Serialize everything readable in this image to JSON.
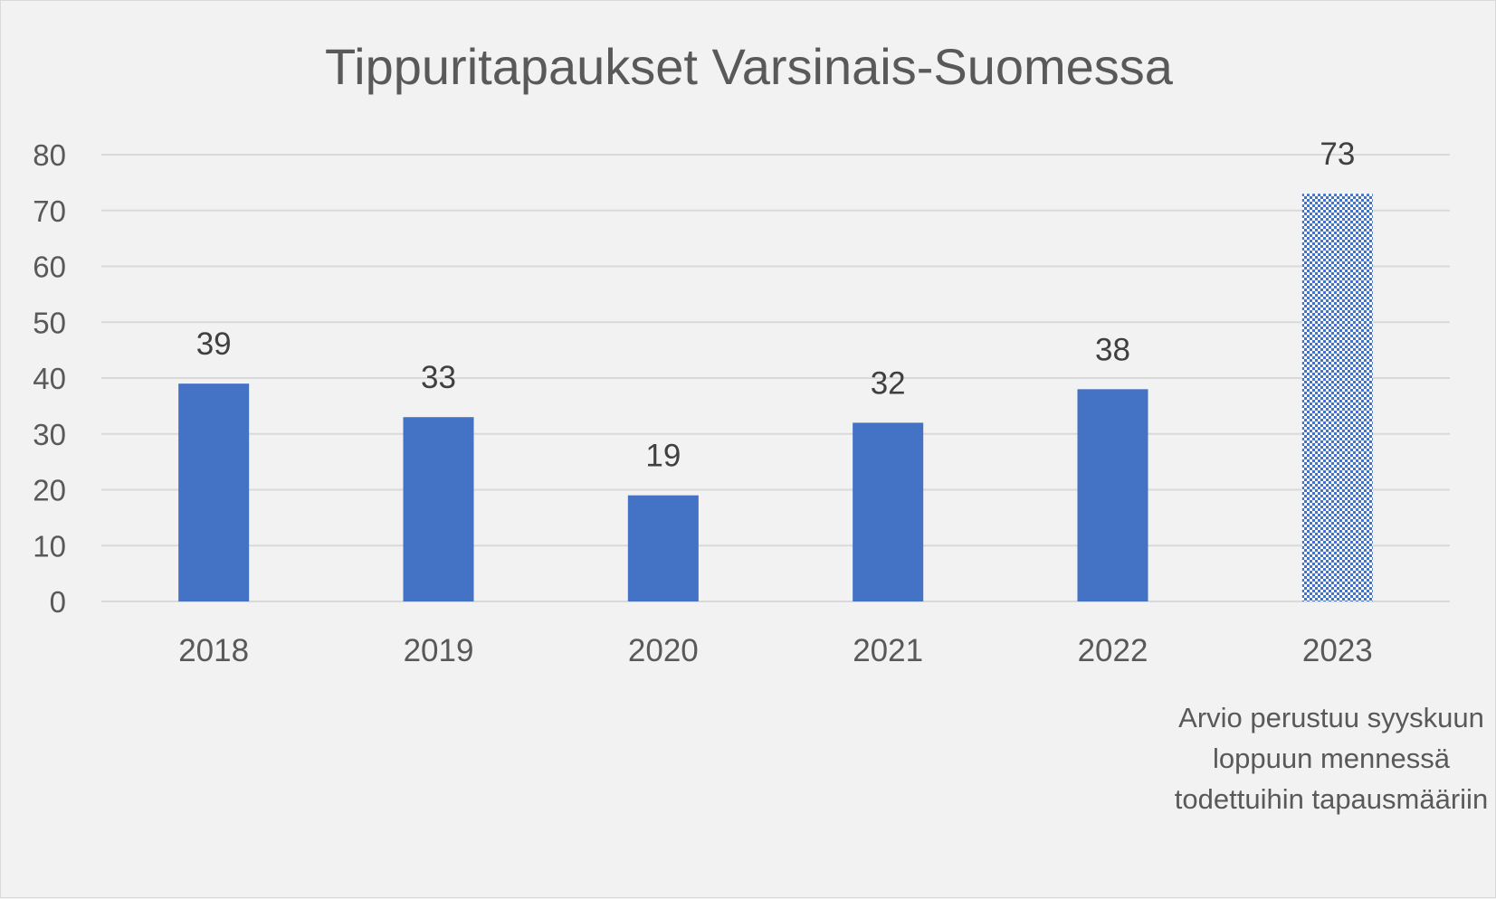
{
  "chart_data": {
    "type": "bar",
    "title": "Tippuritapaukset Varsinais-Suomessa",
    "categories": [
      "2018",
      "2019",
      "2020",
      "2021",
      "2022",
      "2023"
    ],
    "values": [
      39,
      33,
      19,
      32,
      38,
      73
    ],
    "data_labels": [
      "39",
      "33",
      "19",
      "32",
      "38",
      "73"
    ],
    "ylim": [
      0,
      80
    ],
    "yticks": [
      "0",
      "10",
      "20",
      "30",
      "40",
      "50",
      "60",
      "70",
      "80"
    ],
    "grid": true,
    "legend": "none",
    "colors": {
      "bar": "#4472c4",
      "estimate_pattern": "#4472c4",
      "grid": "#d9d9d9"
    },
    "estimate_category": "2023",
    "note": "Arvio perustuu syyskuun loppuun mennessä todettuihin tapausmääriin"
  }
}
